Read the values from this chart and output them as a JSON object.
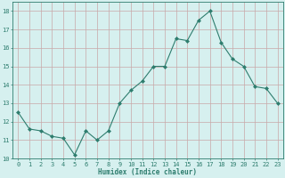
{
  "x": [
    0,
    1,
    2,
    3,
    4,
    5,
    6,
    7,
    8,
    9,
    10,
    11,
    12,
    13,
    14,
    15,
    16,
    17,
    18,
    19,
    20,
    21,
    22,
    23
  ],
  "y": [
    12.5,
    11.6,
    11.5,
    11.2,
    11.1,
    10.2,
    11.5,
    11.0,
    11.5,
    13.0,
    13.7,
    14.2,
    15.0,
    15.0,
    16.5,
    16.4,
    17.5,
    18.0,
    16.3,
    15.4,
    15.0,
    13.9,
    13.8,
    13.0
  ],
  "line_color": "#2e7d6e",
  "marker": "D",
  "marker_size": 2,
  "bg_color": "#d6f0ef",
  "grid_color": "#c8a8a8",
  "xlabel": "Humidex (Indice chaleur)",
  "ylim": [
    10,
    18.5
  ],
  "yticks": [
    10,
    11,
    12,
    13,
    14,
    15,
    16,
    17,
    18
  ],
  "xticks": [
    0,
    1,
    2,
    3,
    4,
    5,
    6,
    7,
    8,
    9,
    10,
    11,
    12,
    13,
    14,
    15,
    16,
    17,
    18,
    19,
    20,
    21,
    22,
    23
  ],
  "label_fontsize": 5.5,
  "tick_fontsize": 5
}
